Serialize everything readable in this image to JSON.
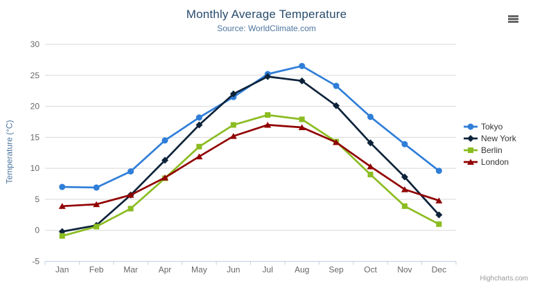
{
  "credits": "Highcharts.com",
  "chart_data": {
    "type": "line",
    "title": "Monthly Average Temperature",
    "subtitle": "Source: WorldClimate.com",
    "xlabel": "",
    "ylabel": "Temperature (°C)",
    "ylim": [
      -5,
      30
    ],
    "ytick_step": 5,
    "grid": "horizontal",
    "legend_position": "right",
    "categories": [
      "Jan",
      "Feb",
      "Mar",
      "Apr",
      "May",
      "Jun",
      "Jul",
      "Aug",
      "Sep",
      "Oct",
      "Nov",
      "Dec"
    ],
    "series": [
      {
        "name": "Tokyo",
        "color": "#2f7ed8",
        "marker": "circle",
        "values": [
          7.0,
          6.9,
          9.5,
          14.5,
          18.2,
          21.5,
          25.2,
          26.5,
          23.3,
          18.3,
          13.9,
          9.6
        ]
      },
      {
        "name": "New York",
        "color": "#0d233a",
        "marker": "diamond",
        "values": [
          -0.2,
          0.8,
          5.7,
          11.3,
          17.0,
          22.0,
          24.8,
          24.1,
          20.1,
          14.1,
          8.6,
          2.5
        ]
      },
      {
        "name": "Berlin",
        "color": "#8bbc21",
        "marker": "square",
        "values": [
          -0.9,
          0.6,
          3.5,
          8.4,
          13.5,
          17.0,
          18.6,
          17.9,
          14.3,
          9.0,
          3.9,
          1.0
        ]
      },
      {
        "name": "London",
        "color": "#910000",
        "marker": "triangle",
        "values": [
          3.9,
          4.2,
          5.7,
          8.5,
          11.9,
          15.2,
          17.0,
          16.6,
          14.2,
          10.3,
          6.6,
          4.8
        ]
      }
    ],
    "colors": {
      "title": "#274b6d",
      "subtitle": "#4d759e",
      "axis_labels": "#666666",
      "gridline": "#d8d8d8",
      "axis_line": "#c0d0e0"
    }
  }
}
